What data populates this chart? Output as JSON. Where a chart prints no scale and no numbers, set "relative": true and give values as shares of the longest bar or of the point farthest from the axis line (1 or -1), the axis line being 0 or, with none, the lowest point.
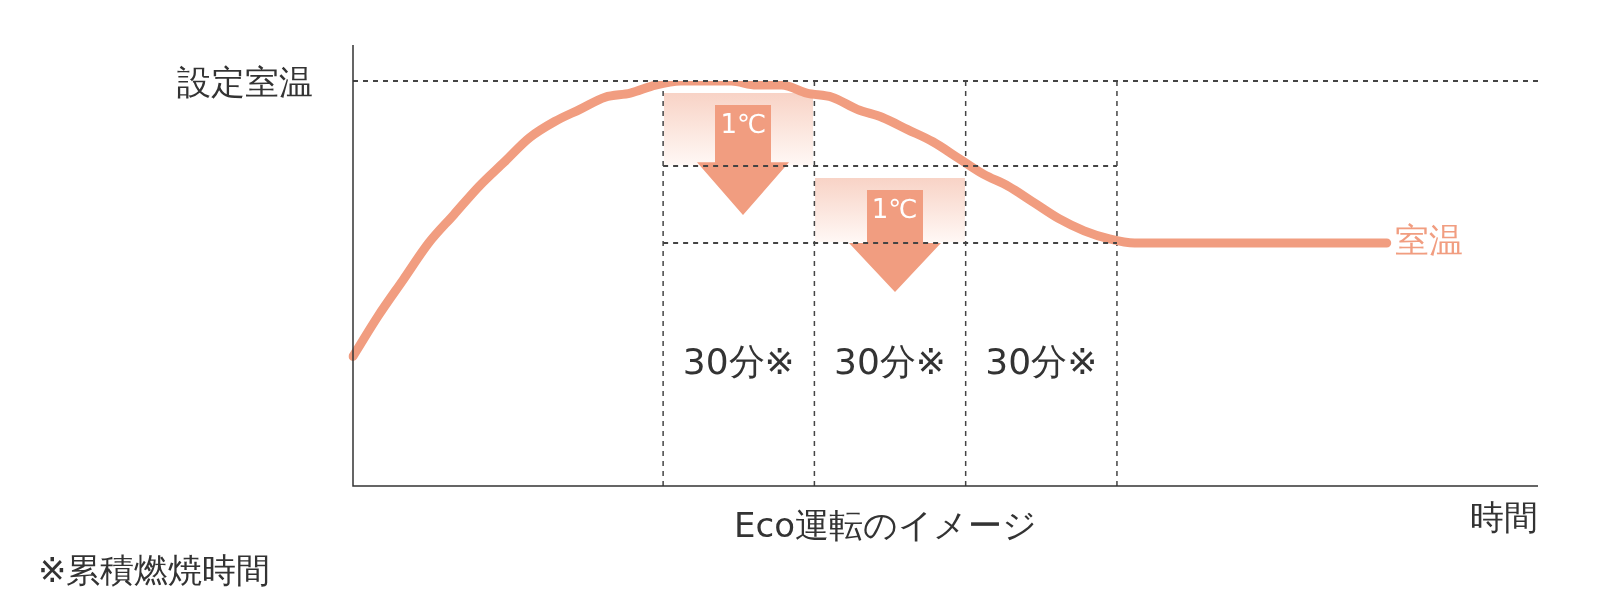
{
  "chart_data": {
    "type": "line",
    "title": "Eco運転のイメージ",
    "xlabel": "時間",
    "relative": true,
    "grid": false,
    "legend": false,
    "marker": "none",
    "line_style": "solid",
    "categories": [
      null,
      null,
      null,
      null,
      null,
      null,
      null,
      null,
      null,
      null,
      null,
      null,
      null,
      null,
      null,
      null,
      null,
      null,
      null,
      null,
      null,
      null,
      null,
      null,
      null,
      null,
      null,
      null,
      null,
      null,
      null,
      null,
      null,
      null,
      null,
      null,
      null,
      null,
      null,
      null,
      null,
      null,
      null,
      null,
      null,
      null,
      null,
      null
    ],
    "series": [
      {
        "name": "室温",
        "color": "#f19d80",
        "values": [
          0.32,
          0.42,
          0.51,
          0.6,
          0.67,
          0.74,
          0.8,
          0.86,
          0.9,
          0.93,
          0.96,
          0.97,
          0.99,
          1,
          1,
          1,
          0.99,
          0.99,
          0.97,
          0.96,
          0.93,
          0.91,
          0.88,
          0.85,
          0.81,
          0.77,
          0.74,
          0.7,
          0.66,
          0.63,
          0.61,
          0.6,
          0.6,
          0.6,
          0.6,
          0.6,
          0.6,
          0.6,
          0.6,
          0.6,
          0.6,
          0.6,
          null,
          null,
          null,
          null,
          null,
          null
        ]
      }
    ],
    "ref_lines": [
      {
        "axis": "y",
        "value": 1,
        "label": "設定室温",
        "color": "#444444",
        "line_style": "dashed"
      },
      {
        "axis": "y",
        "value": 0.79,
        "color": "#444444",
        "line_style": "dashed"
      },
      {
        "axis": "y",
        "value": 0.6,
        "color": "#444444",
        "line_style": "dashed"
      }
    ],
    "annotations": [
      "1℃",
      "1℃",
      "30分※",
      "30分※",
      "30分※",
      "※累積燃焼時間"
    ]
  }
}
